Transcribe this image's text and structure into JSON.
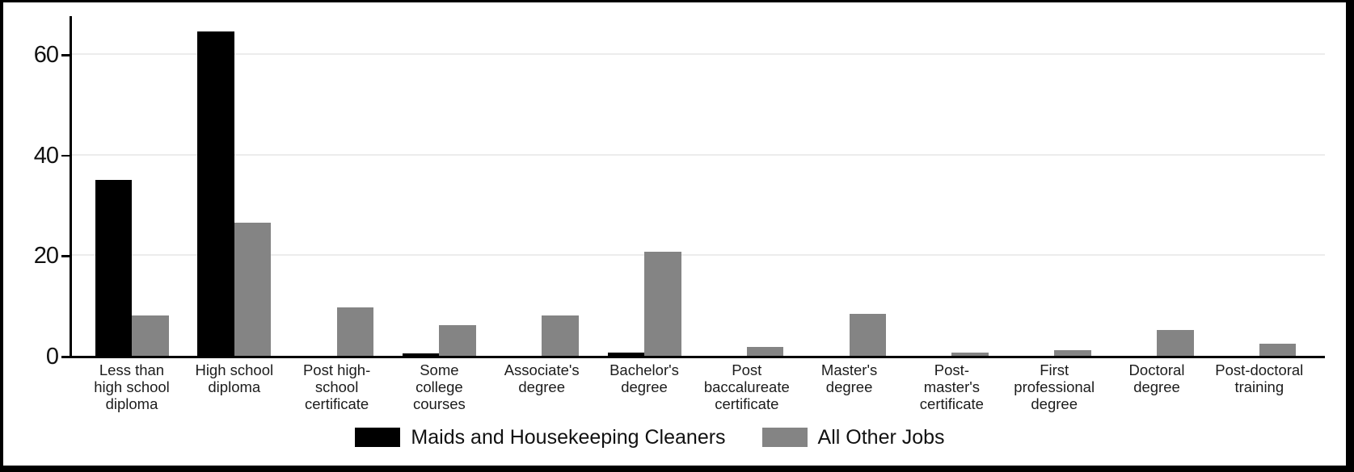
{
  "chart_data": {
    "type": "bar",
    "title": "",
    "xlabel": "",
    "ylabel": "",
    "yticks": [
      0,
      20,
      40,
      60
    ],
    "ylim": [
      0,
      66
    ],
    "grid": true,
    "legend_position": "bottom-center",
    "background_color": "#ffffff",
    "gridline_color": "#ececec",
    "categories": [
      "Less than high school diploma",
      "High school diploma",
      "Post high-school certificate",
      "Some college courses",
      "Associate's degree",
      "Bachelor's degree",
      "Post baccalureate certificate",
      "Master's degree",
      "Post-master's certificate",
      "First professional degree",
      "Doctoral degree",
      "Post-doctoral training"
    ],
    "category_label_lines": [
      [
        "Less than",
        "high school",
        "diploma"
      ],
      [
        "High school",
        "diploma"
      ],
      [
        "Post high-",
        "school",
        "certificate"
      ],
      [
        "Some",
        "college",
        "courses"
      ],
      [
        "Associate's",
        "degree"
      ],
      [
        "Bachelor's",
        "degree"
      ],
      [
        "Post",
        "baccalureate",
        "certificate"
      ],
      [
        "Master's",
        "degree"
      ],
      [
        "Post-",
        "master's",
        "certificate"
      ],
      [
        "First",
        "professional",
        "degree"
      ],
      [
        "Doctoral",
        "degree"
      ],
      [
        "Post-doctoral",
        "training"
      ]
    ],
    "series": [
      {
        "name": "Maids and Housekeeping Cleaners",
        "color": "#000000",
        "values": [
          35,
          64.5,
          0,
          0.5,
          0,
          0.7,
          0,
          0,
          0,
          0,
          0,
          0
        ]
      },
      {
        "name": "All Other Jobs",
        "color": "#848484",
        "values": [
          8,
          26.5,
          9.7,
          6.1,
          8,
          20.7,
          1.7,
          8.3,
          0.6,
          1.1,
          5.1,
          2.4
        ]
      }
    ]
  }
}
